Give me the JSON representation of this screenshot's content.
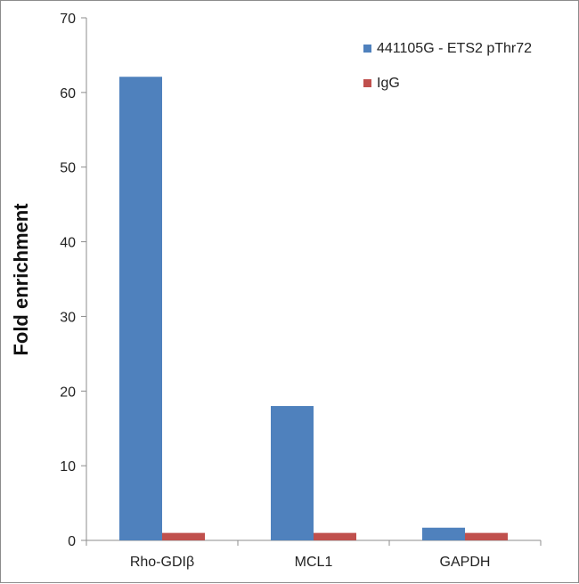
{
  "chart_data": {
    "type": "bar",
    "categories": [
      "Rho-GDIβ",
      "MCL1",
      "GAPDH"
    ],
    "series": [
      {
        "name": "441105G - ETS2 pThr72",
        "values": [
          62.1,
          18.0,
          1.7
        ],
        "color": "#4F81BD"
      },
      {
        "name": "IgG",
        "values": [
          1.0,
          1.0,
          1.0
        ],
        "color": "#C0504D"
      }
    ],
    "title": "",
    "xlabel": "",
    "ylabel": "Fold enrichment",
    "ylim": [
      0,
      70
    ],
    "yticks": [
      0,
      10,
      20,
      30,
      40,
      50,
      60,
      70
    ],
    "grid": false,
    "legend_position": "top-right"
  }
}
